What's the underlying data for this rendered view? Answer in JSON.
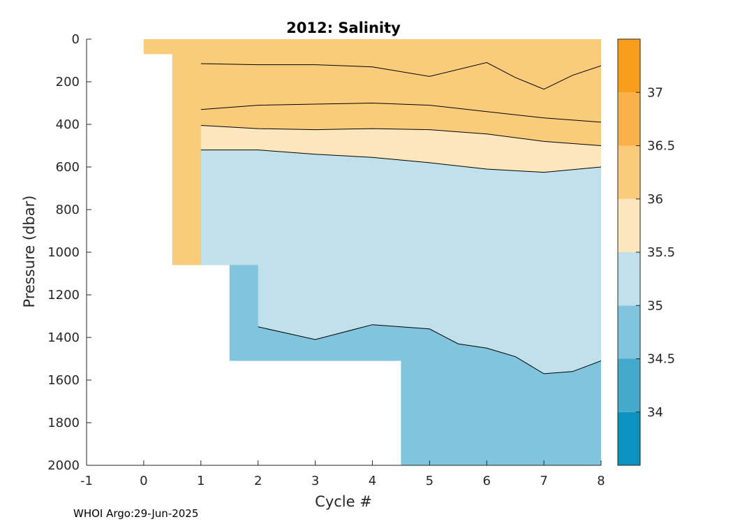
{
  "chart_data": {
    "type": "heatmap",
    "title": "2012:  Salinity",
    "xlabel": "Cycle #",
    "ylabel": "Pressure (dbar)",
    "xlim": [
      -1,
      8
    ],
    "ylim": [
      0,
      2000
    ],
    "y_reversed": true,
    "xticks": [
      -1,
      0,
      1,
      2,
      3,
      4,
      5,
      6,
      7,
      8
    ],
    "yticks": [
      0,
      200,
      400,
      600,
      800,
      1000,
      1200,
      1400,
      1600,
      1800,
      2000
    ],
    "colorbar": {
      "range": [
        33.5,
        37.5
      ],
      "ticks": [
        34,
        34.5,
        35,
        35.5,
        36,
        36.5,
        37
      ],
      "bins": [
        {
          "from": 33.5,
          "to": 34.0,
          "color": "#0a93be"
        },
        {
          "from": 34.0,
          "to": 34.5,
          "color": "#45a9cc"
        },
        {
          "from": 34.5,
          "to": 35.0,
          "color": "#80c4dd"
        },
        {
          "from": 35.0,
          "to": 35.5,
          "color": "#c0e0eb"
        },
        {
          "from": 35.5,
          "to": 36.0,
          "color": "#fce6bd"
        },
        {
          "from": 36.0,
          "to": 36.5,
          "color": "#fbcb7c"
        },
        {
          "from": 36.5,
          "to": 37.0,
          "color": "#f9b24a"
        },
        {
          "from": 37.0,
          "to": 37.5,
          "color": "#f99d1c"
        }
      ]
    },
    "profiles": [
      {
        "cycle": 0,
        "max_pressure": 70
      },
      {
        "cycle": 1,
        "max_pressure": 1060
      },
      {
        "cycle": 2,
        "max_pressure": 1510
      },
      {
        "cycle": 3,
        "max_pressure": 1510
      },
      {
        "cycle": 4,
        "max_pressure": 1510
      },
      {
        "cycle": 5,
        "max_pressure": 2000
      },
      {
        "cycle": 6,
        "max_pressure": 2000
      },
      {
        "cycle": 7,
        "max_pressure": 2000
      },
      {
        "cycle": 8,
        "max_pressure": 2000
      }
    ],
    "contours": [
      {
        "level": 36.5,
        "x": [
          1,
          2,
          3,
          4,
          5,
          6,
          6.5,
          7,
          7.5,
          8
        ],
        "y": [
          115,
          120,
          120,
          130,
          175,
          110,
          180,
          235,
          170,
          125
        ]
      },
      {
        "level": 36.0,
        "x": [
          1,
          2,
          3,
          4,
          5,
          6,
          7,
          8
        ],
        "y": [
          330,
          310,
          305,
          300,
          310,
          340,
          370,
          390
        ]
      },
      {
        "level": 35.5,
        "x": [
          1,
          2,
          3,
          4,
          5,
          6,
          7,
          8
        ],
        "y": [
          405,
          420,
          425,
          420,
          425,
          445,
          480,
          500
        ]
      },
      {
        "level": 35.0,
        "x": [
          1,
          2,
          3,
          4,
          5,
          6,
          7,
          8
        ],
        "y": [
          520,
          520,
          540,
          555,
          580,
          610,
          625,
          600
        ]
      },
      {
        "level": 34.5,
        "x": [
          2,
          3,
          4,
          5,
          5.5,
          6,
          6.5,
          7,
          7.5,
          8
        ],
        "y": [
          1350,
          1410,
          1340,
          1360,
          1430,
          1450,
          1490,
          1570,
          1560,
          1510
        ]
      }
    ]
  },
  "footer": "WHOI Argo:29-Jun-2025"
}
